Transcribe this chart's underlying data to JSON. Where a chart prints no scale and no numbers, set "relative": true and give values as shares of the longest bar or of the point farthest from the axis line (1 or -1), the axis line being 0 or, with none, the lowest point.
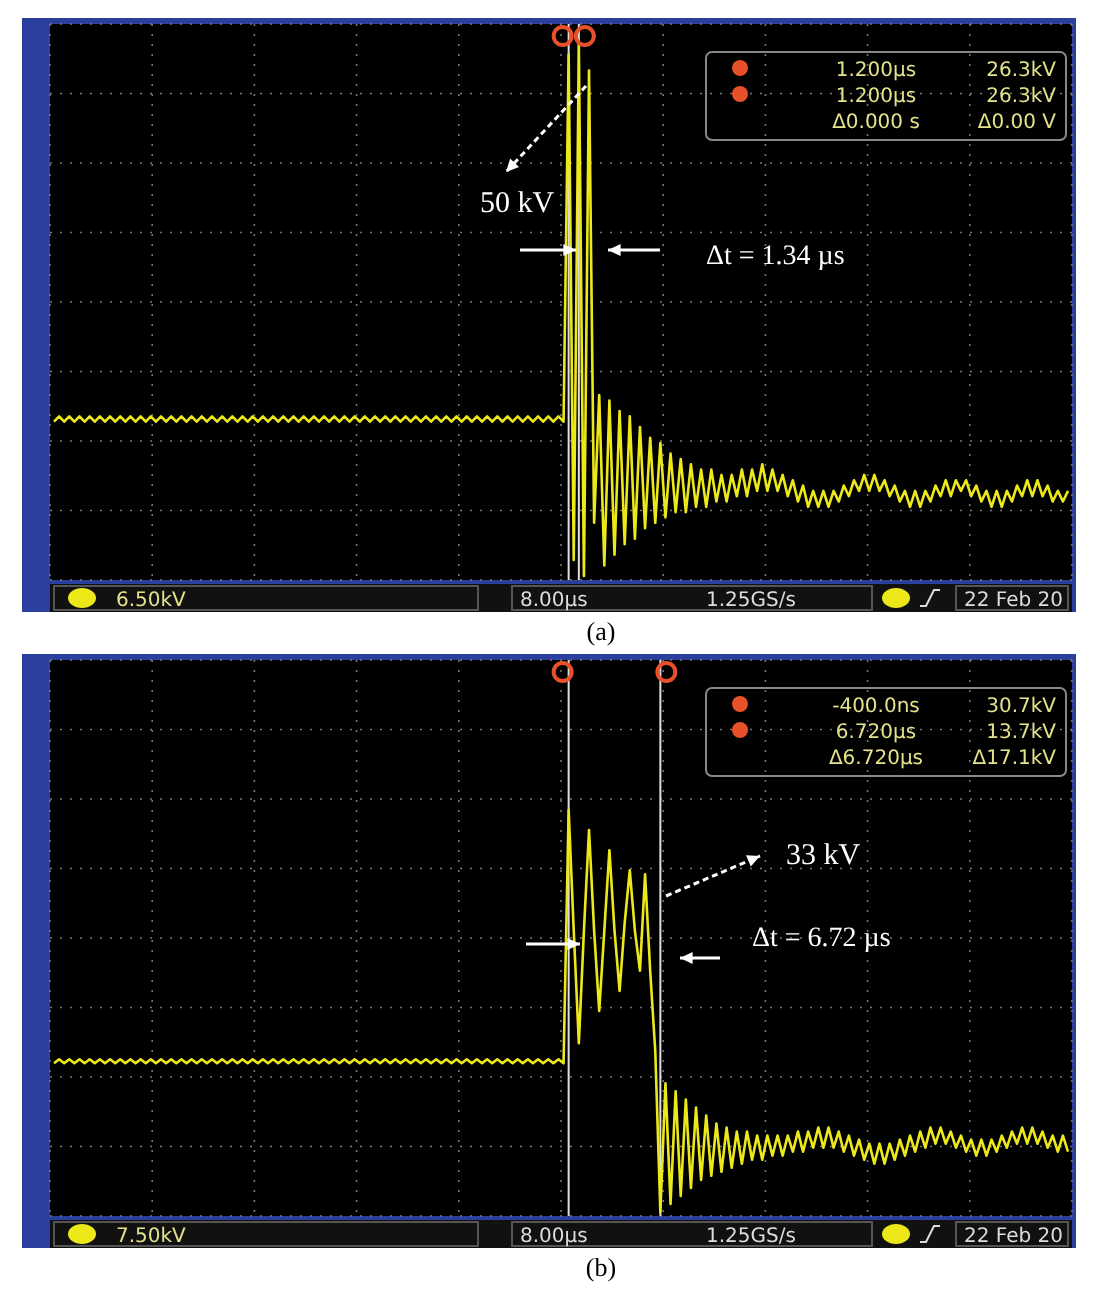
{
  "chart_data": [
    {
      "type": "line",
      "title": "(a)",
      "relative": true,
      "grid": true,
      "categories": [
        null,
        null,
        null,
        null,
        null,
        null,
        null,
        null,
        null,
        null,
        null,
        null,
        null,
        null,
        null,
        null,
        null,
        null,
        null,
        null,
        null,
        null,
        null,
        null,
        null,
        null,
        null,
        null,
        null,
        null,
        null,
        null,
        null,
        null,
        null,
        null,
        null,
        null,
        null,
        null,
        null,
        null,
        null,
        null,
        null,
        null,
        null,
        null,
        null,
        null,
        null,
        null,
        null,
        null,
        null,
        null,
        null,
        null,
        null,
        null,
        null,
        null,
        null,
        null,
        null,
        null,
        null,
        null,
        null,
        null,
        null,
        null,
        null,
        null,
        null,
        null,
        null,
        null,
        null,
        null,
        null,
        null,
        null,
        null,
        null,
        null,
        null,
        null,
        null,
        null,
        null,
        null,
        null,
        null,
        null,
        null,
        null,
        null,
        null,
        null,
        null,
        null,
        null,
        null,
        null,
        null,
        null,
        null,
        null,
        null,
        null,
        null,
        null,
        null,
        null,
        null,
        null,
        null,
        null,
        null,
        null,
        null,
        null,
        null,
        null,
        null,
        null,
        null,
        null,
        null,
        null,
        null,
        null,
        null,
        null,
        null,
        null,
        null,
        null,
        null,
        null,
        null,
        null,
        null,
        null,
        null,
        null,
        null,
        null,
        null,
        null,
        null,
        null,
        null,
        null,
        null,
        null,
        null,
        null,
        null,
        null,
        null,
        null,
        null,
        null,
        null,
        null,
        null,
        null,
        null,
        null,
        null,
        null,
        null,
        null,
        null,
        null,
        null,
        null,
        null,
        null,
        null,
        null,
        null,
        null,
        null,
        null,
        null,
        null,
        null,
        null,
        null,
        null,
        null,
        null,
        null,
        null,
        null,
        null,
        null
      ],
      "series": [
        {
          "color": "#ece81a",
          "values": [
            0.29,
            0.3,
            0.29,
            0.3,
            0.29,
            0.3,
            0.29,
            0.3,
            0.29,
            0.3,
            0.29,
            0.3,
            0.29,
            0.3,
            0.29,
            0.3,
            0.29,
            0.3,
            0.29,
            0.3,
            0.29,
            0.3,
            0.29,
            0.3,
            0.29,
            0.3,
            0.29,
            0.3,
            0.29,
            0.3,
            0.29,
            0.3,
            0.29,
            0.3,
            0.29,
            0.3,
            0.29,
            0.3,
            0.29,
            0.3,
            0.29,
            0.3,
            0.29,
            0.3,
            0.29,
            0.3,
            0.29,
            0.3,
            0.29,
            0.3,
            0.29,
            0.3,
            0.29,
            0.3,
            0.29,
            0.3,
            0.29,
            0.3,
            0.29,
            0.3,
            0.29,
            0.3,
            0.29,
            0.3,
            0.29,
            0.3,
            0.29,
            0.3,
            0.29,
            0.3,
            0.29,
            0.3,
            0.29,
            0.3,
            0.29,
            0.3,
            0.29,
            0.3,
            0.29,
            0.3,
            0.29,
            0.3,
            0.29,
            0.3,
            0.29,
            0.3,
            0.29,
            0.3,
            0.29,
            0.3,
            0.29,
            0.3,
            0.29,
            0.3,
            0.29,
            0.3,
            0.29,
            0.3,
            0.29,
            0.3,
            0.29,
            0.98,
            0.03,
            1.0,
            0.0,
            0.95,
            0.1,
            0.34,
            0.02,
            0.33,
            0.04,
            0.31,
            0.06,
            0.3,
            0.07,
            0.28,
            0.09,
            0.26,
            0.1,
            0.25,
            0.11,
            0.23,
            0.12,
            0.22,
            0.12,
            0.21,
            0.13,
            0.2,
            0.13,
            0.2,
            0.14,
            0.19,
            0.14,
            0.19,
            0.15,
            0.2,
            0.15,
            0.2,
            0.16,
            0.21,
            0.16,
            0.2,
            0.16,
            0.19,
            0.15,
            0.18,
            0.14,
            0.17,
            0.13,
            0.16,
            0.13,
            0.16,
            0.13,
            0.16,
            0.14,
            0.17,
            0.15,
            0.18,
            0.16,
            0.19,
            0.16,
            0.19,
            0.16,
            0.18,
            0.15,
            0.17,
            0.14,
            0.16,
            0.13,
            0.16,
            0.13,
            0.16,
            0.14,
            0.17,
            0.15,
            0.18,
            0.15,
            0.18,
            0.16,
            0.18,
            0.15,
            0.17,
            0.14,
            0.16,
            0.13,
            0.16,
            0.13,
            0.16,
            0.14,
            0.17,
            0.15,
            0.18,
            0.15,
            0.18,
            0.15,
            0.17,
            0.14,
            0.16,
            0.14,
            0.16
          ]
        }
      ],
      "annotations": [
        "50 kV",
        "Δt = 1.34 µs",
        "1.200µs",
        "26.3kV",
        "1.200µs",
        "26.3kV",
        "Δ0.000 s",
        "Δ0.00 V",
        "6.50kV",
        "8.00µs",
        "1.25GS/s",
        "22 Feb 20"
      ]
    },
    {
      "type": "line",
      "title": "(b)",
      "relative": true,
      "grid": true,
      "categories": [
        null,
        null,
        null,
        null,
        null,
        null,
        null,
        null,
        null,
        null,
        null,
        null,
        null,
        null,
        null,
        null,
        null,
        null,
        null,
        null,
        null,
        null,
        null,
        null,
        null,
        null,
        null,
        null,
        null,
        null,
        null,
        null,
        null,
        null,
        null,
        null,
        null,
        null,
        null,
        null,
        null,
        null,
        null,
        null,
        null,
        null,
        null,
        null,
        null,
        null,
        null,
        null,
        null,
        null,
        null,
        null,
        null,
        null,
        null,
        null,
        null,
        null,
        null,
        null,
        null,
        null,
        null,
        null,
        null,
        null,
        null,
        null,
        null,
        null,
        null,
        null,
        null,
        null,
        null,
        null,
        null,
        null,
        null,
        null,
        null,
        null,
        null,
        null,
        null,
        null,
        null,
        null,
        null,
        null,
        null,
        null,
        null,
        null,
        null,
        null,
        null,
        null,
        null,
        null,
        null,
        null,
        null,
        null,
        null,
        null,
        null,
        null,
        null,
        null,
        null,
        null,
        null,
        null,
        null,
        null,
        null,
        null,
        null,
        null,
        null,
        null,
        null,
        null,
        null,
        null,
        null,
        null,
        null,
        null,
        null,
        null,
        null,
        null,
        null,
        null,
        null,
        null,
        null,
        null,
        null,
        null,
        null,
        null,
        null,
        null,
        null,
        null,
        null,
        null,
        null,
        null,
        null,
        null,
        null,
        null,
        null,
        null,
        null,
        null,
        null,
        null,
        null,
        null,
        null,
        null,
        null,
        null,
        null,
        null,
        null,
        null,
        null,
        null,
        null,
        null,
        null,
        null,
        null,
        null,
        null,
        null,
        null,
        null,
        null,
        null,
        null,
        null,
        null,
        null,
        null,
        null,
        null,
        null,
        null,
        null
      ],
      "series": [
        {
          "color": "#ece81a",
          "values": [
            0.37,
            0.38,
            0.37,
            0.38,
            0.37,
            0.38,
            0.37,
            0.38,
            0.37,
            0.38,
            0.37,
            0.38,
            0.37,
            0.38,
            0.37,
            0.38,
            0.37,
            0.38,
            0.37,
            0.38,
            0.37,
            0.38,
            0.37,
            0.38,
            0.37,
            0.38,
            0.37,
            0.38,
            0.37,
            0.38,
            0.37,
            0.38,
            0.37,
            0.38,
            0.37,
            0.38,
            0.37,
            0.38,
            0.37,
            0.38,
            0.37,
            0.38,
            0.37,
            0.38,
            0.37,
            0.38,
            0.37,
            0.38,
            0.37,
            0.38,
            0.37,
            0.38,
            0.37,
            0.38,
            0.37,
            0.38,
            0.37,
            0.38,
            0.37,
            0.38,
            0.37,
            0.38,
            0.37,
            0.38,
            0.37,
            0.38,
            0.37,
            0.38,
            0.37,
            0.38,
            0.37,
            0.38,
            0.37,
            0.38,
            0.37,
            0.38,
            0.37,
            0.38,
            0.37,
            0.38,
            0.37,
            0.38,
            0.37,
            0.38,
            0.37,
            0.38,
            0.37,
            0.38,
            0.37,
            0.38,
            0.37,
            0.38,
            0.37,
            0.38,
            0.37,
            0.38,
            0.37,
            0.38,
            0.37,
            0.38,
            0.37,
            1.0,
            0.7,
            0.42,
            0.7,
            0.95,
            0.7,
            0.5,
            0.7,
            0.9,
            0.7,
            0.55,
            0.72,
            0.85,
            0.7,
            0.6,
            0.84,
            0.6,
            0.4,
            0.0,
            0.32,
            0.02,
            0.3,
            0.04,
            0.28,
            0.06,
            0.26,
            0.08,
            0.24,
            0.09,
            0.22,
            0.1,
            0.21,
            0.11,
            0.2,
            0.12,
            0.2,
            0.13,
            0.19,
            0.13,
            0.19,
            0.14,
            0.19,
            0.14,
            0.19,
            0.15,
            0.2,
            0.15,
            0.2,
            0.16,
            0.21,
            0.16,
            0.21,
            0.16,
            0.2,
            0.15,
            0.19,
            0.14,
            0.18,
            0.13,
            0.17,
            0.12,
            0.17,
            0.12,
            0.17,
            0.13,
            0.18,
            0.14,
            0.19,
            0.15,
            0.2,
            0.16,
            0.21,
            0.17,
            0.21,
            0.17,
            0.2,
            0.16,
            0.19,
            0.15,
            0.18,
            0.14,
            0.18,
            0.14,
            0.18,
            0.15,
            0.19,
            0.16,
            0.2,
            0.17,
            0.21,
            0.17,
            0.21,
            0.17,
            0.2,
            0.16,
            0.19,
            0.15,
            0.19,
            0.15
          ]
        }
      ],
      "annotations": [
        "33 kV",
        "Δt = 6.72 µs",
        "-400.0ns",
        "30.7kV",
        "6.720µs",
        "13.7kV",
        "Δ6.720µs",
        "Δ17.1kV",
        "7.50kV",
        "8.00µs",
        "1.25GS/s",
        "22 Feb 20"
      ]
    }
  ]
}
